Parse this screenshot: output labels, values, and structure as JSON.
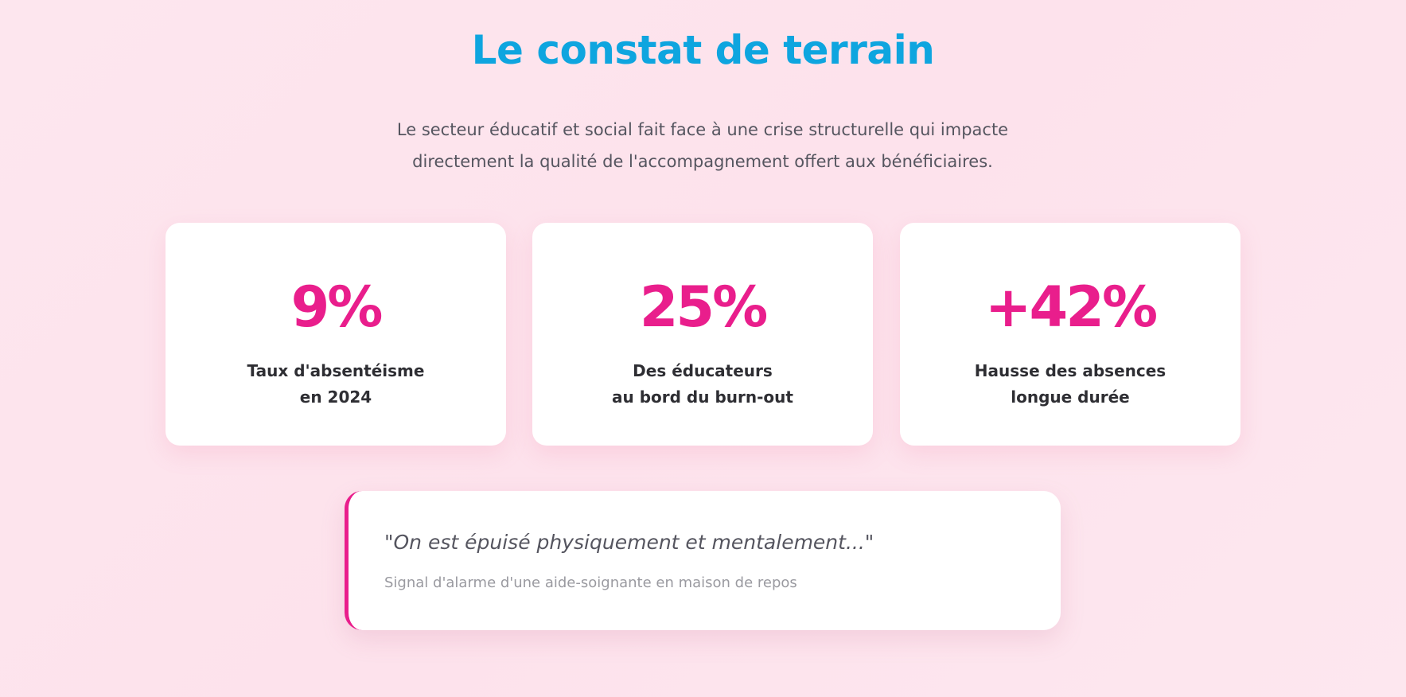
{
  "section": {
    "title": "Le constat de terrain",
    "intro_lines": [
      "Le secteur éducatif et social fait face à une crise structurelle qui impacte",
      "directement la qualité de l'accompagnement offert aux bénéficiaires."
    ]
  },
  "stats": [
    {
      "value": "9%",
      "label_lines": [
        "Taux d'absentéisme",
        "en 2024"
      ]
    },
    {
      "value": "25%",
      "label_lines": [
        "Des éducateurs",
        "au bord du burn-out"
      ]
    },
    {
      "value": "+42%",
      "label_lines": [
        "Hausse des absences",
        "longue durée"
      ]
    }
  ],
  "quote": {
    "text": "\"On est épuisé physiquement et mentalement...\"",
    "source": "Signal d'alarme d'une aide-soignante en maison de repos"
  },
  "colors": {
    "title": "#0ea5df",
    "accent": "#e91e8c",
    "background": "#fde6ee",
    "card": "#ffffff",
    "body_text": "#55555f",
    "label_text": "#2e2e33",
    "muted_text": "#9a9aa0"
  }
}
